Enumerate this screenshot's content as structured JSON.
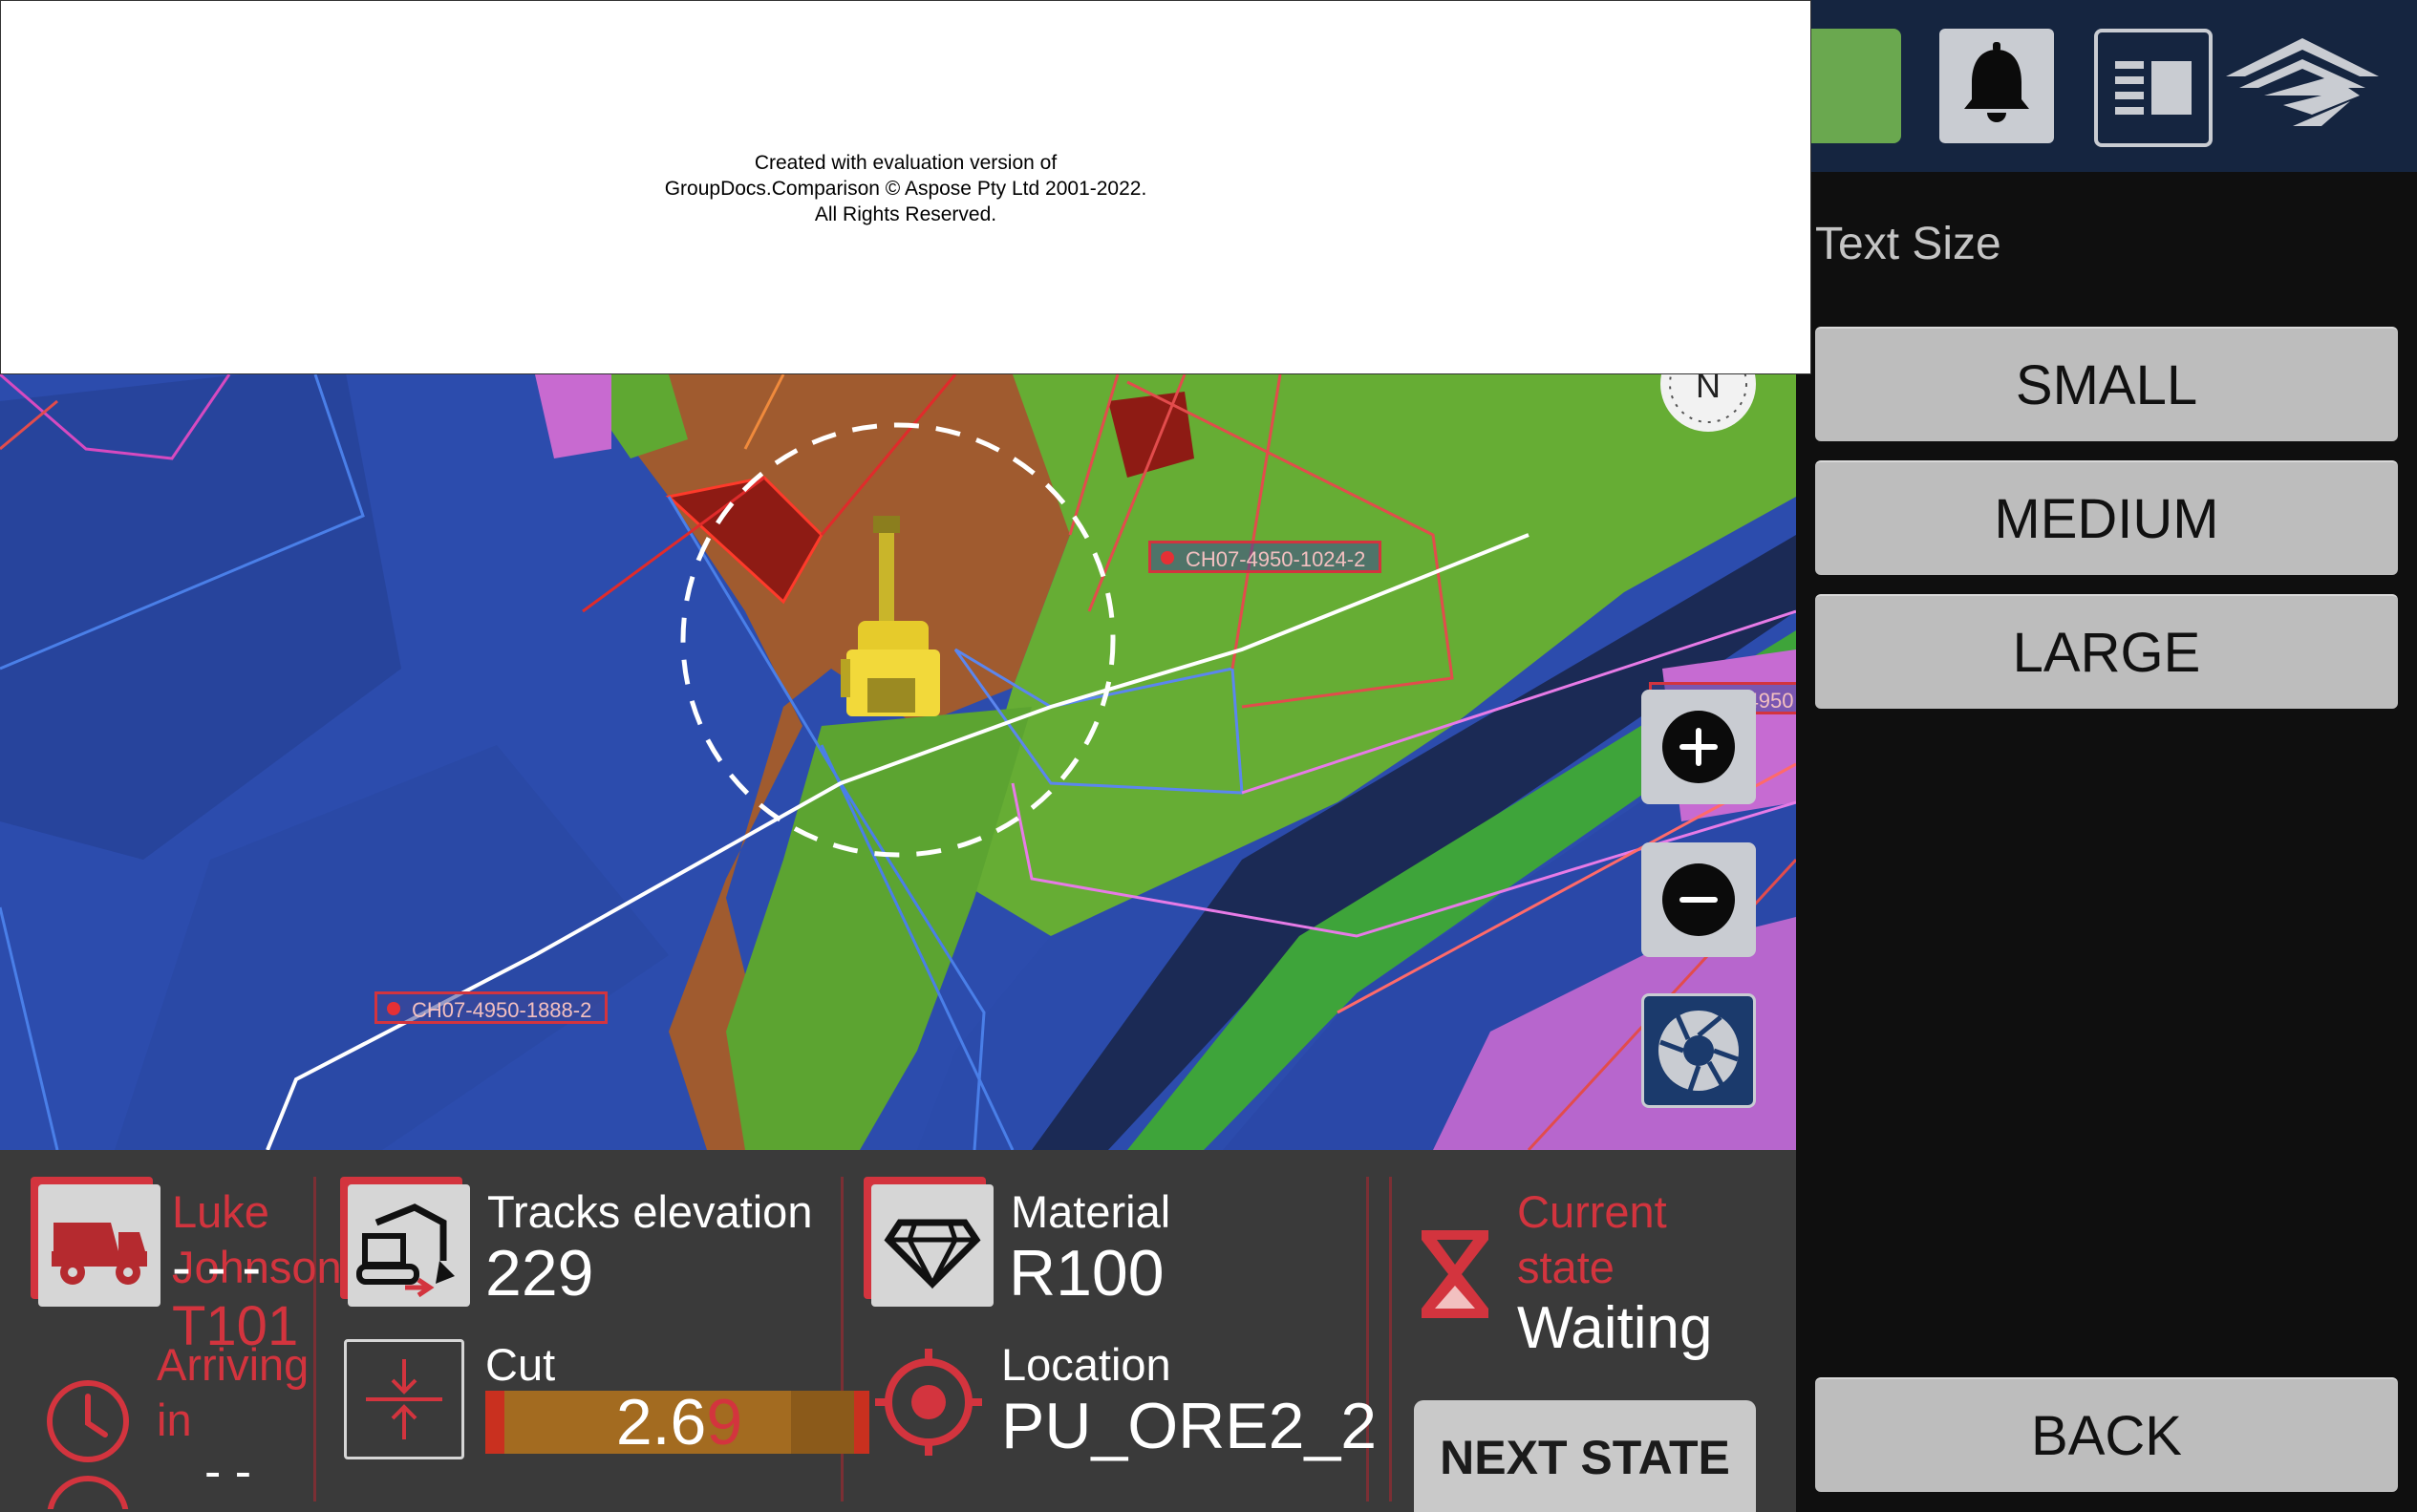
{
  "watermark": {
    "line1": "Created with evaluation version of",
    "line2": "GroupDocs.Comparison © Aspose Pty Ltd 2001-2022.",
    "line3": "All Rights Reserved."
  },
  "map": {
    "labels": [
      "CH07-4950-1024-2",
      "CH07-4950-1888-2",
      "CH07-4950"
    ],
    "compass_letter": "N"
  },
  "side_panel": {
    "title": "Text Size",
    "options": [
      "SMALL",
      "MEDIUM",
      "LARGE"
    ],
    "back_label": "BACK"
  },
  "truck": {
    "operator": "Luke Johnson",
    "id": "T101",
    "placeholder": "- - -"
  },
  "arriving": {
    "label": "Arriving in",
    "value": "- -"
  },
  "tracks": {
    "label": "Tracks elevation",
    "value": "229"
  },
  "cut": {
    "label": "Cut",
    "value": "2.6",
    "ghost_value": "9",
    "fill": 0.82
  },
  "material": {
    "label": "Material",
    "value": "R100"
  },
  "location": {
    "label": "Location",
    "value": "PU_ORE2_2"
  },
  "state": {
    "label": "Current state",
    "value": "Waiting",
    "next_label": "NEXT STATE"
  },
  "colors": {
    "accent_red": "#d3343e",
    "green_status": "#6aa84f",
    "topbar": "#152540"
  },
  "icons": [
    "bell-icon",
    "layout-icon",
    "company-logo-icon",
    "zoom-in-icon",
    "zoom-out-icon",
    "camera-shutter-icon",
    "dump-truck-icon",
    "clock-icon",
    "excavator-icon",
    "elevation-icon",
    "gem-icon",
    "location-target-icon",
    "hourglass-icon"
  ]
}
